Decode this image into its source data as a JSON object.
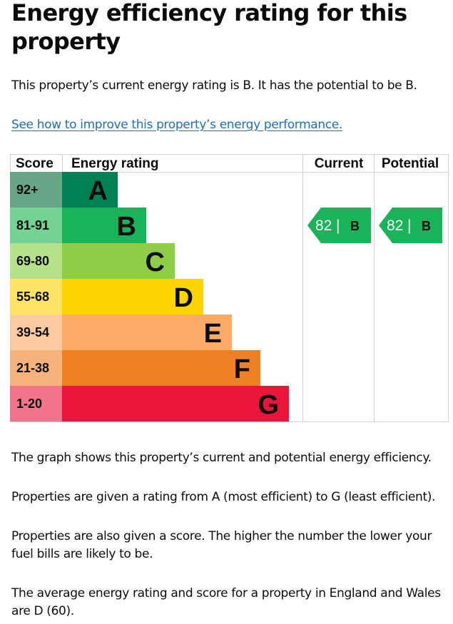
{
  "page": {
    "title": "Energy efficiency rating for this property",
    "intro": "This property’s current energy rating is B. It has the potential to be B.",
    "improve_link": "See how to improve this property’s energy performance.",
    "paragraphs": [
      "The graph shows this property’s current and potential energy efficiency.",
      "Properties are given a rating from A (most efficient) to G (least efficient).",
      "Properties are also given a score. The higher the number the lower your fuel bills are likely to be.",
      "The average energy rating and score for a property in England and Wales are D (60)."
    ]
  },
  "chart_data": {
    "type": "bar",
    "headers": {
      "score": "Score",
      "rating": "Energy rating",
      "current": "Current",
      "potential": "Potential"
    },
    "categories": [
      "A",
      "B",
      "C",
      "D",
      "E",
      "F",
      "G"
    ],
    "score_ranges": [
      "92+",
      "81-91",
      "69-80",
      "55-68",
      "39-54",
      "21-38",
      "1-20"
    ],
    "band_colors": [
      "#008054",
      "#19b459",
      "#8dce46",
      "#ffd500",
      "#fcaa65",
      "#ef8023",
      "#e9153b"
    ],
    "score_cell_colors": [
      "#66a687",
      "#75d295",
      "#b5e189",
      "#fee366",
      "#fdcb9f",
      "#f5b27b",
      "#f2748b"
    ],
    "current": {
      "score": 82,
      "rating": "B",
      "separator": "|"
    },
    "potential": {
      "score": 82,
      "rating": "B",
      "separator": "|"
    },
    "grid": true
  }
}
